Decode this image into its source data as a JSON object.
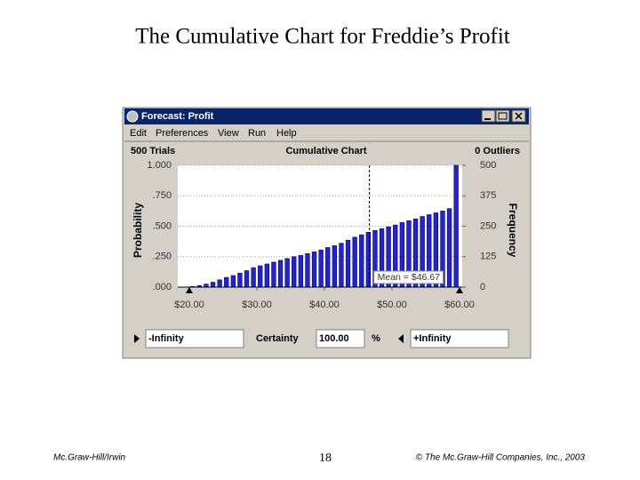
{
  "slide": {
    "title": "The Cumulative Chart for Freddie’s Profit",
    "footer_left": "Mc.Graw-Hill/Irwin",
    "page": "18",
    "footer_right": "© The Mc.Graw-Hill Companies, Inc., 2003"
  },
  "window": {
    "title": "Forecast: Profit",
    "menu": [
      "Edit",
      "Preferences",
      "View",
      "Run",
      "Help"
    ]
  },
  "chart_data": {
    "type": "bar",
    "title": "Cumulative Chart",
    "trials": "500 Trials",
    "outliers": "0 Outliers",
    "ylabel": "Probability",
    "y2label": "Frequency",
    "color": "#2424cc",
    "x": [
      20.5,
      21.5,
      22.5,
      23.5,
      24.5,
      25.5,
      26.5,
      27.5,
      28.5,
      29.5,
      30.5,
      31.5,
      32.5,
      33.5,
      34.5,
      35.5,
      36.5,
      37.5,
      38.5,
      39.5,
      40.5,
      41.5,
      42.5,
      43.5,
      44.5,
      45.5,
      46.5,
      47.5,
      48.5,
      49.5,
      50.5,
      51.5,
      52.5,
      53.5,
      54.5,
      55.5,
      56.5,
      57.5,
      58.5,
      59.5
    ],
    "values": [
      0.005,
      0.012,
      0.025,
      0.04,
      0.06,
      0.08,
      0.095,
      0.115,
      0.135,
      0.16,
      0.175,
      0.19,
      0.205,
      0.22,
      0.235,
      0.25,
      0.26,
      0.275,
      0.29,
      0.305,
      0.325,
      0.34,
      0.36,
      0.385,
      0.41,
      0.43,
      0.45,
      0.465,
      0.48,
      0.495,
      0.51,
      0.53,
      0.545,
      0.56,
      0.58,
      0.595,
      0.61,
      0.625,
      0.645,
      1.0
    ],
    "xlim": [
      18.3,
      60.4
    ],
    "xticks": [
      {
        "value": 20,
        "label": "$20.00"
      },
      {
        "value": 30,
        "label": "$30.00"
      },
      {
        "value": 40,
        "label": "$40.00"
      },
      {
        "value": 50,
        "label": "$50.00"
      },
      {
        "value": 60,
        "label": "$60.00"
      }
    ],
    "ylim": [
      0,
      1
    ],
    "yticks": [
      {
        "value": 1,
        "label": "1.000"
      },
      {
        "value": 0.75,
        "label": ".750"
      },
      {
        "value": 0.5,
        "label": ".500"
      },
      {
        "value": 0.25,
        "label": ".250"
      },
      {
        "value": 0,
        "label": ".000"
      }
    ],
    "y2lim": [
      0,
      500
    ],
    "y2ticks": [
      500,
      375,
      250,
      125,
      0
    ],
    "mean": {
      "value": 46.67,
      "label": "Mean = $46.67"
    }
  },
  "certainty": {
    "left": "-Infinity",
    "label": "Certainty",
    "value": "100.00",
    "unit": "%",
    "right": "+Infinity"
  }
}
